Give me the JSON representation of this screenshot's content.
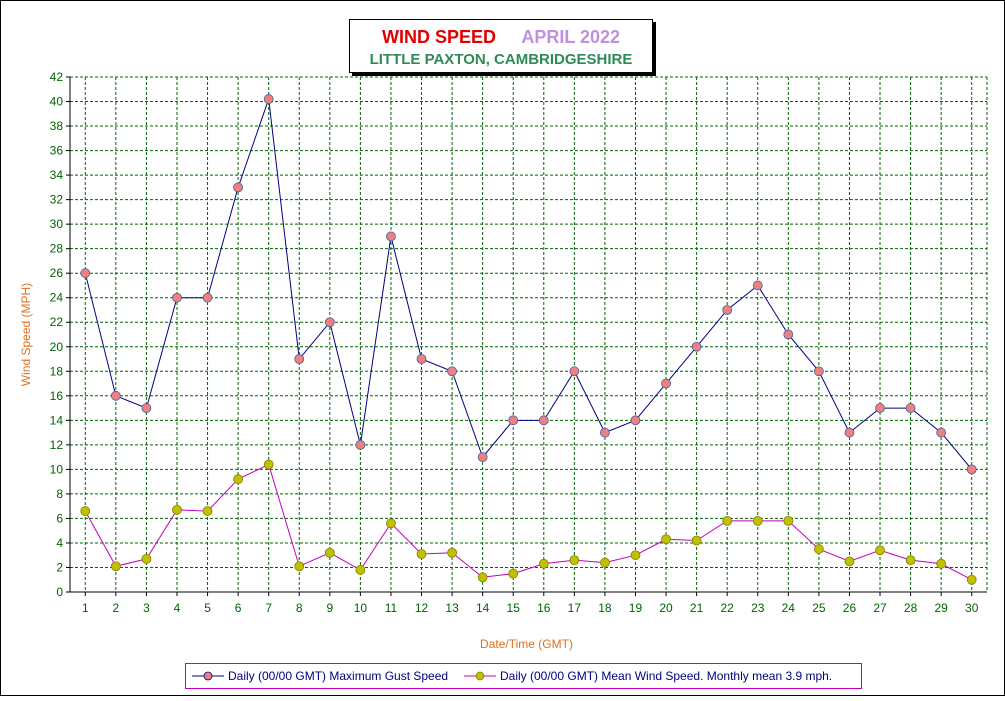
{
  "title": {
    "main": "WIND SPEED",
    "period": "APRIL 2022",
    "location": "LITTLE PAXTON, CAMBRIDGESHIRE"
  },
  "colors": {
    "title_main": "#e00000",
    "title_period": "#c090e0",
    "title_location": "#2e8b57",
    "axis_label": "#e07020",
    "tick_label": "#006400",
    "grid": "#006400",
    "gust_line": "#000080",
    "gust_marker": "#f08080",
    "mean_line": "#c000c0",
    "mean_marker": "#c0c000"
  },
  "chart_data": {
    "type": "line",
    "title": "WIND SPEED APRIL 2022",
    "subtitle": "LITTLE PAXTON, CAMBRIDGESHIRE",
    "xlabel": "Date/Time (GMT)",
    "ylabel": "Wind Speed (MPH)",
    "x": [
      1,
      2,
      3,
      4,
      5,
      6,
      7,
      8,
      9,
      10,
      11,
      12,
      13,
      14,
      15,
      16,
      17,
      18,
      19,
      20,
      21,
      22,
      23,
      24,
      25,
      26,
      27,
      28,
      29,
      30
    ],
    "xlim": [
      0.5,
      30.5
    ],
    "ylim": [
      0,
      42
    ],
    "yticks": [
      0,
      2,
      4,
      6,
      8,
      10,
      12,
      14,
      16,
      18,
      20,
      22,
      24,
      26,
      28,
      30,
      32,
      34,
      36,
      38,
      40,
      42
    ],
    "grid": true,
    "legend_position": "bottom",
    "series": [
      {
        "name": "Daily (00/00 GMT) Maximum Gust Speed",
        "values": [
          26,
          16,
          15,
          24,
          24,
          33,
          40.2,
          19,
          22,
          12,
          29,
          19,
          18,
          11,
          14,
          14,
          18,
          13,
          14,
          17,
          20,
          23,
          25,
          21,
          18,
          13,
          15,
          15,
          13,
          10
        ],
        "line_color": "#000080",
        "marker_color": "#f08080"
      },
      {
        "name": "Daily (00/00 GMT) Mean Wind Speed. Monthly mean 3.9 mph.",
        "values": [
          6.6,
          2.1,
          2.7,
          6.7,
          6.6,
          9.2,
          10.4,
          2.1,
          3.2,
          1.8,
          5.6,
          3.1,
          3.2,
          1.2,
          1.5,
          2.3,
          2.6,
          2.4,
          3.0,
          4.3,
          4.2,
          5.8,
          5.8,
          5.8,
          3.5,
          2.5,
          3.4,
          2.6,
          2.3,
          1.0
        ],
        "line_color": "#c000c0",
        "marker_color": "#c0c000"
      }
    ]
  }
}
